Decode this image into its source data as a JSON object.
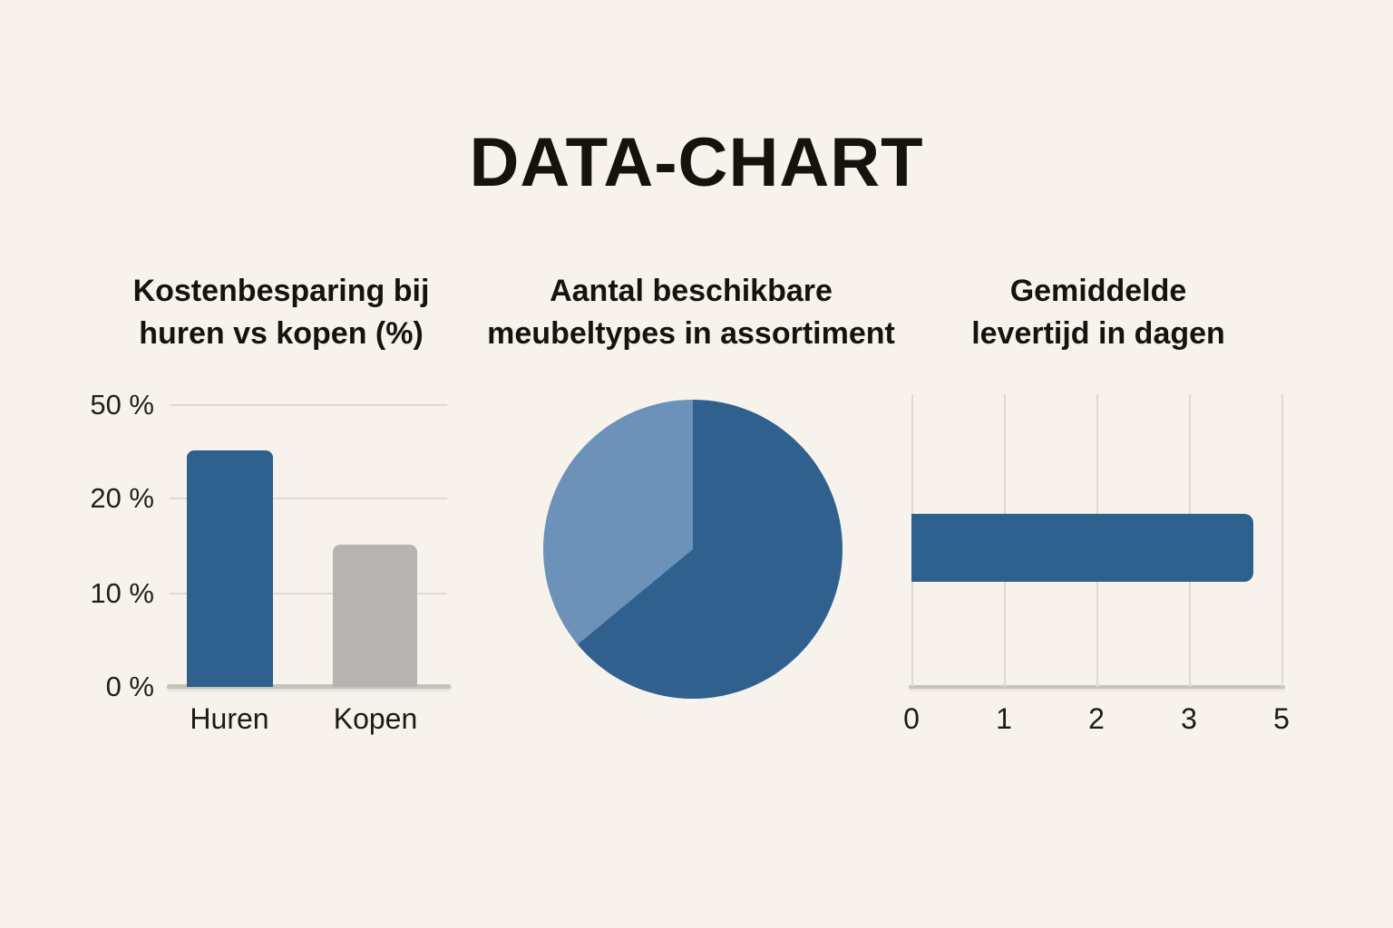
{
  "page_title": "DATA-CHART",
  "colors": {
    "background": "#f7f3ec",
    "text": "#16120d",
    "dark_blue": "#2e608d",
    "light_blue": "#6d92b9",
    "grey_bar": "#b5b4b2",
    "gridline": "#dfdbd3",
    "axis_line": "#c6c3bb"
  },
  "chart_data": [
    {
      "type": "bar",
      "orientation": "vertical",
      "title": "Kostenbesparing bij huren vs kopen (%)",
      "title_lines": [
        "Kostenbesparing bij",
        "huren vs kopen (%)"
      ],
      "categories": [
        "Huren",
        "Kopen"
      ],
      "values": [
        35,
        15
      ],
      "bar_colors": [
        "#2e608d",
        "#b5b4b2"
      ],
      "y_axis": {
        "tick_labels": [
          "50 %",
          "20 %",
          "10 %",
          "0 %"
        ],
        "tick_values_top_to_bottom": [
          50,
          20,
          10,
          0
        ]
      },
      "grid": true,
      "legend": false
    },
    {
      "type": "pie",
      "title": "Aantal beschikbare meubeltypes in assortiment",
      "title_lines": [
        "Aantal beschikbare",
        "meubeltypes in assortiment"
      ],
      "start_angle_deg": 0,
      "slices": [
        {
          "label": "",
          "percent": 64,
          "color": "#30618e"
        },
        {
          "label": "",
          "percent": 36,
          "color": "#6d92b9"
        }
      ],
      "legend": false
    },
    {
      "type": "bar",
      "orientation": "horizontal",
      "title": "Gemiddelde levertijd in dagen",
      "title_lines": [
        "Gemiddelde",
        "levertijd in dagen"
      ],
      "categories": [
        ""
      ],
      "values": [
        4.4
      ],
      "bar_colors": [
        "#2e608d"
      ],
      "x_axis": {
        "tick_labels": [
          "0",
          "1",
          "2",
          "3",
          "5"
        ],
        "tick_values": [
          0,
          1,
          2,
          3,
          5
        ],
        "xlim": [
          0,
          5
        ]
      },
      "grid": true,
      "legend": false
    }
  ]
}
